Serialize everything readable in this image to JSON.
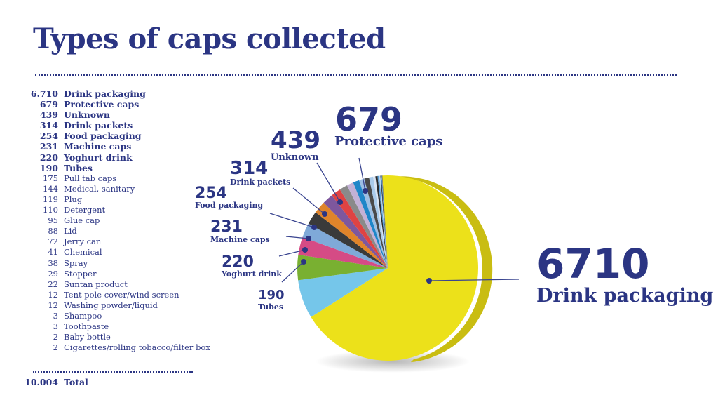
{
  "chart_data": {
    "type": "pie",
    "title": "Types of caps collected",
    "slices": [
      {
        "label": "Drink packaging",
        "value": 6710,
        "display": "6.710",
        "color": "#ece11a"
      },
      {
        "label": "Protective caps",
        "value": 679,
        "display": "679",
        "color": "#75c6ea"
      },
      {
        "label": "Unknown",
        "value": 439,
        "display": "439",
        "color": "#79b031"
      },
      {
        "label": "Drink packets",
        "value": 314,
        "display": "314",
        "color": "#d54b85"
      },
      {
        "label": "Food packaging",
        "value": 254,
        "display": "254",
        "color": "#7fa9d8"
      },
      {
        "label": "Machine caps",
        "value": 231,
        "display": "231",
        "color": "#3a3a3a"
      },
      {
        "label": "Yoghurt drink",
        "value": 220,
        "display": "220",
        "color": "#e0842a"
      },
      {
        "label": "Tubes",
        "value": 190,
        "display": "190",
        "color": "#7e579d"
      },
      {
        "label": "Pull tab caps",
        "value": 175,
        "display": "175",
        "color": "#df4343"
      },
      {
        "label": "Medical, sanitary",
        "value": 144,
        "display": "144",
        "color": "#8a8a8a"
      },
      {
        "label": "Plug",
        "value": 119,
        "display": "119",
        "color": "#c3b1d6"
      },
      {
        "label": "Detergent",
        "value": 110,
        "display": "110",
        "color": "#1f86c8"
      },
      {
        "label": "Glue cap",
        "value": 95,
        "display": "95",
        "color": "#9dbfe3"
      },
      {
        "label": "Lid",
        "value": 88,
        "display": "88",
        "color": "#4a4a4a"
      },
      {
        "label": "Jerry can",
        "value": 72,
        "display": "72",
        "color": "#aacbea"
      },
      {
        "label": "Chemical",
        "value": 41,
        "display": "41",
        "color": "#d9e4f2"
      },
      {
        "label": "Spray",
        "value": 38,
        "display": "38",
        "color": "#2a2a2a"
      },
      {
        "label": "Stopper",
        "value": 29,
        "display": "29",
        "color": "#5aa0d8"
      },
      {
        "label": "Suntan product",
        "value": 22,
        "display": "22",
        "color": "#b9d4ee"
      },
      {
        "label": "Tent pole cover/wind screen",
        "value": 12,
        "display": "12",
        "color": "#1a1a1a"
      },
      {
        "label": "Washing powder/liquid",
        "value": 12,
        "display": "12",
        "color": "#3b7fc2"
      },
      {
        "label": "Shampoo",
        "value": 3,
        "display": "3",
        "color": "#ffffff"
      },
      {
        "label": "Toothpaste",
        "value": 3,
        "display": "3",
        "color": "#000000"
      },
      {
        "label": "Baby bottle",
        "value": 2,
        "display": "2",
        "color": "#555555"
      },
      {
        "label": "Cigarettes/rolling tobacco/filter box",
        "value": 2,
        "display": "2",
        "color": "#000000"
      }
    ],
    "total": {
      "label": "Total",
      "display": "10.004"
    },
    "callouts": [
      {
        "value": "6710",
        "label": "Drink packaging"
      },
      {
        "value": "679",
        "label": "Protective caps"
      },
      {
        "value": "439",
        "label": "Unknown"
      },
      {
        "value": "314",
        "label": "Drink packets"
      },
      {
        "value": "254",
        "label": "Food packaging"
      },
      {
        "value": "231",
        "label": "Machine caps"
      },
      {
        "value": "220",
        "label": "Yoghurt drink"
      },
      {
        "value": "190",
        "label": "Tubes"
      }
    ],
    "text_color": "#2b3583"
  }
}
